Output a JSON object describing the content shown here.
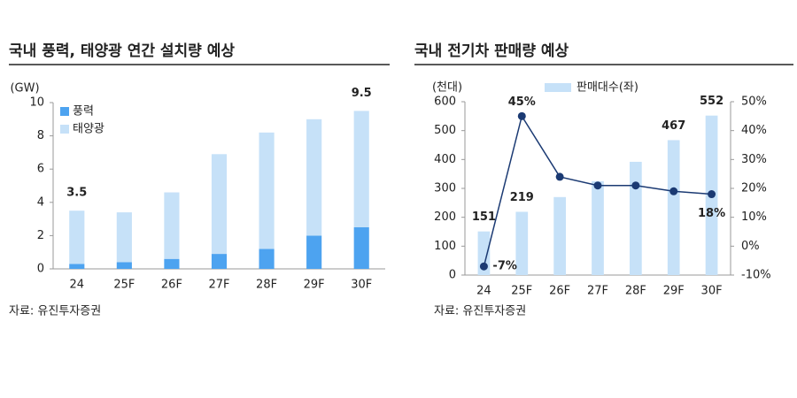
{
  "chart_data": [
    {
      "type": "stacked-bar",
      "title": "국내 풍력, 태양광 연간 설치량 예상",
      "y_label": "(GW)",
      "categories": [
        "24",
        "25F",
        "26F",
        "27F",
        "28F",
        "29F",
        "30F"
      ],
      "series": [
        {
          "name": "풍력",
          "color": "#4da3f0",
          "values": [
            0.3,
            0.4,
            0.6,
            0.9,
            1.2,
            2.0,
            2.5
          ]
        },
        {
          "name": "태양광",
          "color": "#c6e1f8",
          "values": [
            3.2,
            3.0,
            4.0,
            6.0,
            7.0,
            7.0,
            7.0
          ]
        }
      ],
      "ylim": [
        0,
        10
      ],
      "yticks": [
        0,
        2,
        4,
        6,
        8,
        10
      ],
      "grid": false,
      "legend": "top-left",
      "annotations": [
        {
          "text": "3.5",
          "category": "24",
          "value": 3.5
        },
        {
          "text": "9.5",
          "category": "30F",
          "value": 9.5
        }
      ],
      "source": "자료: 유진투자증권"
    },
    {
      "type": "bar-line",
      "title": "국내 전기차 판매량 예상",
      "y_label": "(천대)",
      "categories": [
        "24",
        "25F",
        "26F",
        "27F",
        "28F",
        "29F",
        "30F"
      ],
      "series": [
        {
          "name": "판매대수(좌)",
          "type": "bar",
          "color": "#c6e1f8",
          "values": [
            151,
            219,
            270,
            325,
            392,
            467,
            552
          ],
          "value_labels": [
            "151",
            "219",
            null,
            null,
            null,
            "467",
            "552"
          ]
        },
        {
          "type": "line",
          "axis": "y2",
          "color": "#1b3a73",
          "label_color": "#1f5fbf",
          "values": [
            -7,
            45,
            24,
            21,
            21,
            19,
            18
          ],
          "value_labels": [
            "-7%",
            "45%",
            null,
            null,
            null,
            null,
            "18%"
          ]
        }
      ],
      "ylim": [
        0,
        600
      ],
      "yticks": [
        0,
        100,
        200,
        300,
        400,
        500,
        600
      ],
      "y2lim": [
        -10,
        50
      ],
      "y2ticks": [
        {
          "value": -10,
          "label": "-10%"
        },
        {
          "value": 0,
          "label": "0%"
        },
        {
          "value": 10,
          "label": "10%"
        },
        {
          "value": 20,
          "label": "20%"
        },
        {
          "value": 30,
          "label": "30%"
        },
        {
          "value": 40,
          "label": "40%"
        },
        {
          "value": 50,
          "label": "50%"
        }
      ],
      "grid": false,
      "legend": "top",
      "source": "자료: 유진투자증권"
    }
  ]
}
